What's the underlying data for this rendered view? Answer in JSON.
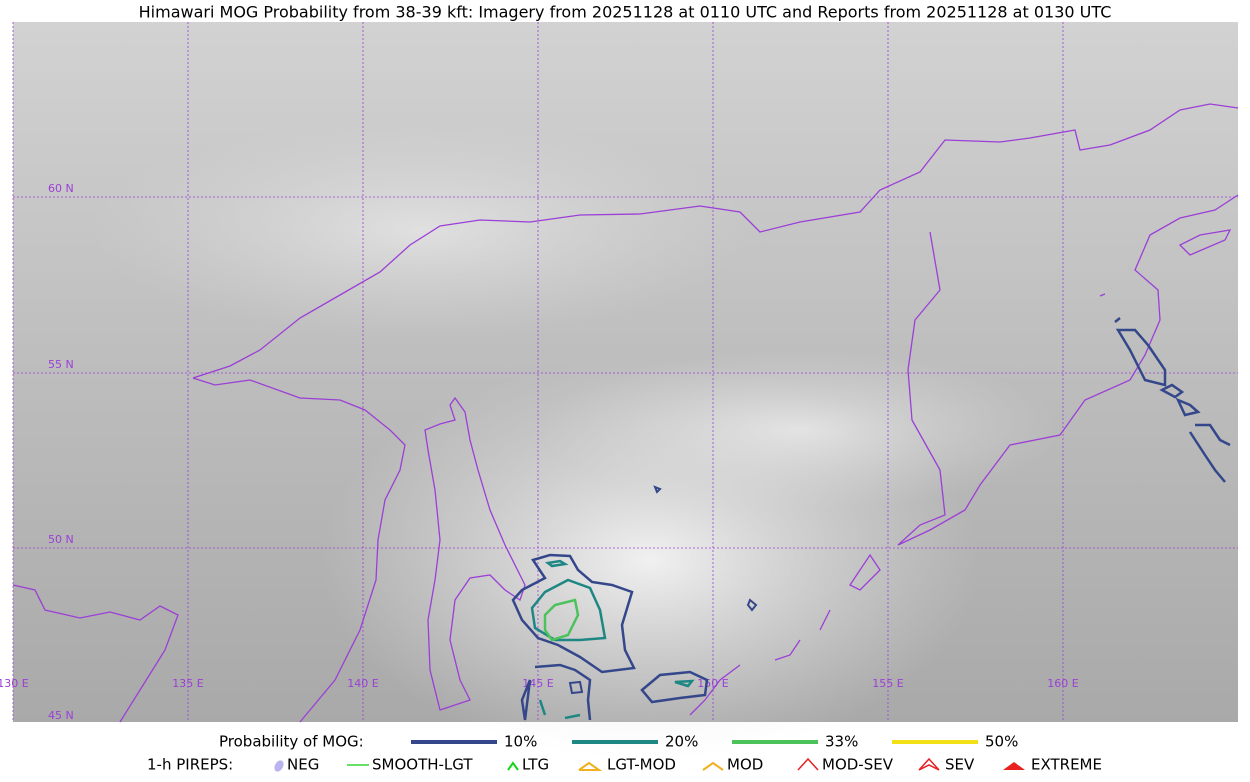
{
  "title": "Himawari MOG Probability from 38-39 kft: Imagery from 20251128 at 0110 UTC and Reports from 20251128 at 0130 UTC",
  "grid": {
    "lat_labels": [
      "60 N",
      "55 N",
      "50 N",
      "45 N"
    ],
    "lon_labels": [
      "130 E",
      "135 E",
      "140 E",
      "145 E",
      "150 E",
      "155 E",
      "160 E"
    ]
  },
  "legend": {
    "probability_title": "Probability of MOG:",
    "probability_items": [
      {
        "label": "10%",
        "color": "#34478a"
      },
      {
        "label": "20%",
        "color": "#1e8784"
      },
      {
        "label": "33%",
        "color": "#4bc25a"
      },
      {
        "label": "50%",
        "color": "#f2e117"
      }
    ],
    "pirep_title": "1-h PIREPS:",
    "pirep_items": [
      {
        "label": "NEG",
        "color": "#b9b4f0"
      },
      {
        "label": "SMOOTH-LGT",
        "color": "#36d636"
      },
      {
        "label": "LTG",
        "color": "#12d612"
      },
      {
        "label": "LGT-MOD",
        "color": "#f0b020"
      },
      {
        "label": "MOD",
        "color": "#f0b020"
      },
      {
        "label": "MOD-SEV",
        "color": "#e82020"
      },
      {
        "label": "SEV",
        "color": "#e82020"
      },
      {
        "label": "EXTREME",
        "color": "#e82020"
      }
    ]
  }
}
